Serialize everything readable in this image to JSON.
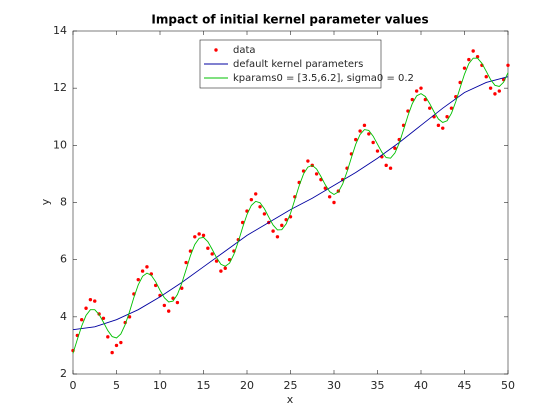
{
  "chart_data": {
    "type": "line",
    "title": "Impact of initial kernel parameter values",
    "xlabel": "x",
    "ylabel": "y",
    "xlim": [
      0,
      50
    ],
    "xticks": [
      0,
      5,
      10,
      15,
      20,
      25,
      30,
      35,
      40,
      45,
      50
    ],
    "ylim": [
      2,
      14
    ],
    "yticks": [
      2,
      4,
      6,
      8,
      10,
      12,
      14
    ],
    "grid": false,
    "legend": "north",
    "series": [
      {
        "name": "data",
        "color": "#ff0000",
        "style": "markers",
        "x": [
          0,
          0.5,
          1,
          1.5,
          2,
          2.5,
          3,
          3.5,
          4,
          4.5,
          5,
          5.5,
          6,
          6.5,
          7,
          7.5,
          8,
          8.5,
          9,
          9.5,
          10,
          10.5,
          11,
          11.5,
          12,
          12.5,
          13,
          13.5,
          14,
          14.5,
          15,
          15.5,
          16,
          16.5,
          17,
          17.5,
          18,
          18.5,
          19,
          19.5,
          20,
          20.5,
          21,
          21.5,
          22,
          22.5,
          23,
          23.5,
          24,
          24.5,
          25,
          25.5,
          26,
          26.5,
          27,
          27.5,
          28,
          28.5,
          29,
          29.5,
          30,
          30.5,
          31,
          31.5,
          32,
          32.5,
          33,
          33.5,
          34,
          34.5,
          35,
          35.5,
          36,
          36.5,
          37,
          37.5,
          38,
          38.5,
          39,
          39.5,
          40,
          40.5,
          41,
          41.5,
          42,
          42.5,
          43,
          43.5,
          44,
          44.5,
          45,
          45.5,
          46,
          46.5,
          47,
          47.5,
          48,
          48.5,
          49,
          49.5,
          50
        ],
        "values": [
          2.82,
          3.35,
          3.9,
          4.3,
          4.6,
          4.55,
          4.1,
          3.95,
          3.3,
          2.75,
          3.0,
          3.1,
          3.8,
          4.0,
          4.8,
          5.3,
          5.6,
          5.75,
          5.5,
          5.1,
          4.75,
          4.4,
          4.2,
          4.65,
          4.5,
          5.0,
          5.9,
          6.3,
          6.8,
          6.9,
          6.85,
          6.4,
          6.2,
          5.95,
          5.6,
          5.7,
          6.0,
          6.3,
          6.7,
          7.3,
          7.7,
          8.1,
          8.3,
          7.85,
          7.6,
          7.3,
          7.0,
          6.8,
          7.2,
          7.4,
          7.5,
          8.2,
          8.7,
          9.1,
          9.45,
          9.3,
          9.0,
          8.8,
          8.5,
          8.2,
          8.0,
          8.4,
          8.8,
          9.2,
          9.7,
          10.2,
          10.5,
          10.7,
          10.4,
          10.1,
          9.8,
          9.6,
          9.3,
          9.2,
          9.9,
          10.2,
          10.7,
          11.2,
          11.6,
          11.9,
          12.0,
          11.6,
          11.3,
          11.0,
          10.7,
          10.6,
          11.0,
          11.3,
          11.7,
          12.2,
          12.7,
          13.0,
          13.3,
          13.1,
          12.8,
          12.4,
          12.0,
          11.8,
          11.9,
          12.3,
          12.8
        ]
      },
      {
        "name": "default kernel parameters",
        "color": "#0000a0",
        "style": "line",
        "x": [
          0,
          2.5,
          5,
          7.5,
          10,
          12.5,
          15,
          17.5,
          20,
          22.5,
          25,
          27.5,
          30,
          32.5,
          35,
          37.5,
          40,
          42.5,
          45,
          47.5,
          50
        ],
        "values": [
          3.55,
          3.65,
          3.9,
          4.25,
          4.7,
          5.2,
          5.75,
          6.3,
          6.85,
          7.3,
          7.75,
          8.15,
          8.6,
          9.05,
          9.55,
          10.1,
          10.7,
          11.3,
          11.85,
          12.2,
          12.4
        ]
      },
      {
        "name": "kparams0 = [3.5,6.2], sigma0 = 0.2",
        "color": "#00c000",
        "style": "line",
        "x": [
          0,
          0.5,
          1,
          1.5,
          2,
          2.5,
          3,
          3.5,
          4,
          4.5,
          5,
          5.5,
          6,
          6.5,
          7,
          7.5,
          8,
          8.5,
          9,
          9.5,
          10,
          10.5,
          11,
          11.5,
          12,
          12.5,
          13,
          13.5,
          14,
          14.5,
          15,
          15.5,
          16,
          16.5,
          17,
          17.5,
          18,
          18.5,
          19,
          19.5,
          20,
          20.5,
          21,
          21.5,
          22,
          22.5,
          23,
          23.5,
          24,
          24.5,
          25,
          25.5,
          26,
          26.5,
          27,
          27.5,
          28,
          28.5,
          29,
          29.5,
          30,
          30.5,
          31,
          31.5,
          32,
          32.5,
          33,
          33.5,
          34,
          34.5,
          35,
          35.5,
          36,
          36.5,
          37,
          37.5,
          38,
          38.5,
          39,
          39.5,
          40,
          40.5,
          41,
          41.5,
          42,
          42.5,
          43,
          43.5,
          44,
          44.5,
          45,
          45.5,
          46,
          46.5,
          47,
          47.5,
          48,
          48.5,
          49,
          49.5,
          50
        ],
        "values": [
          2.72,
          3.21,
          3.68,
          4.05,
          4.25,
          4.25,
          4.08,
          3.81,
          3.52,
          3.31,
          3.26,
          3.4,
          3.73,
          4.18,
          4.68,
          5.12,
          5.42,
          5.53,
          5.45,
          5.23,
          4.93,
          4.67,
          4.52,
          4.55,
          4.78,
          5.17,
          5.65,
          6.14,
          6.53,
          6.75,
          6.78,
          6.63,
          6.36,
          6.07,
          5.84,
          5.77,
          5.88,
          6.19,
          6.63,
          7.13,
          7.58,
          7.9,
          8.04,
          7.99,
          7.78,
          7.49,
          7.21,
          7.04,
          7.05,
          7.25,
          7.62,
          8.1,
          8.59,
          9.0,
          9.24,
          9.3,
          9.17,
          8.91,
          8.62,
          8.38,
          8.28,
          8.37,
          8.65,
          9.08,
          9.57,
          10.04,
          10.38,
          10.55,
          10.52,
          10.32,
          10.04,
          9.76,
          9.57,
          9.55,
          9.73,
          10.08,
          10.55,
          11.04,
          11.46,
          11.73,
          11.81,
          11.71,
          11.46,
          11.17,
          10.92,
          10.8,
          10.86,
          11.12,
          11.53,
          12.02,
          12.49,
          12.86,
          13.05,
          13.05,
          12.87,
          12.59,
          12.3,
          12.1,
          12.06,
          12.21,
          12.54
        ]
      }
    ]
  }
}
